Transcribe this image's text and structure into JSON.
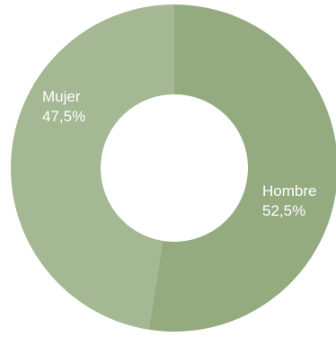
{
  "chart_data": {
    "type": "pie",
    "donut": true,
    "series": [
      {
        "slices": [
          {
            "label": "Hombre",
            "value": 52.5,
            "value_text": "52,5%",
            "color": "#94ab80"
          },
          {
            "label": "Mujer",
            "value": 47.5,
            "value_text": "47,5%",
            "color": "#a3b893"
          }
        ]
      }
    ],
    "start_angle_deg": 0,
    "direction": "clockwise"
  }
}
